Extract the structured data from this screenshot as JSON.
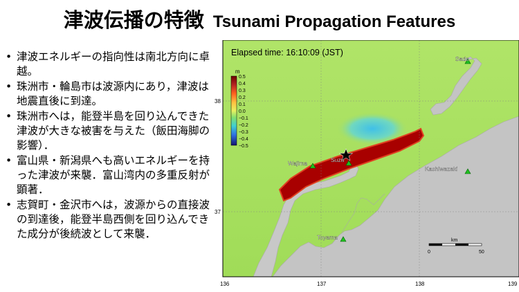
{
  "header": {
    "title_jp": "津波伝播の特徴",
    "title_en": "Tsunami Propagation Features"
  },
  "bullets": [
    "津波エネルギーの指向性は南北方向に卓越。",
    "珠洲市・輪島市は波源内にあり，津波は地震直後に到達。",
    "珠洲市へは，能登半島を回り込んできた津波が大きな被害を与えた（飯田海脚の影響）．",
    "富山県・新潟県へも高いエネルギーを持った津波が来襲．富山湾内の多重反射が顕著．",
    "志賀町・金沢市へは，波源からの直接波の到達後，能登半島西側を回り込んできた成分が後続波として来襲．"
  ],
  "map": {
    "elapsed_time": "Elapsed time: 16:10:09 (JST)",
    "colorbar": {
      "unit": "m",
      "ticks": [
        "0.5",
        "0.4",
        "0.3",
        "0.2",
        "0.1",
        "0.0",
        "−0.1",
        "−0.2",
        "−0.3",
        "−0.4",
        "−0.5"
      ],
      "colors": [
        "#8b0000",
        "#b22222",
        "#e04020",
        "#ff8030",
        "#ffc040",
        "#e0f050",
        "#a0e060",
        "#40d0c0",
        "#30a0e0",
        "#3050e0",
        "#1a1a8c"
      ]
    },
    "stations": [
      {
        "name": "Sado"
      },
      {
        "name": "Wajima"
      },
      {
        "name": "Suzu"
      },
      {
        "name": "Kashiwazaki"
      },
      {
        "name": "Toyama"
      }
    ],
    "lat_labels": [
      "38",
      "37"
    ],
    "lon_labels": [
      "136",
      "137",
      "138",
      "139"
    ],
    "scalebar": {
      "unit": "km",
      "start": "0",
      "end": "50"
    },
    "colors": {
      "sea": "#a8e060",
      "land": "#c8c8c8",
      "station": "#20c020"
    }
  }
}
